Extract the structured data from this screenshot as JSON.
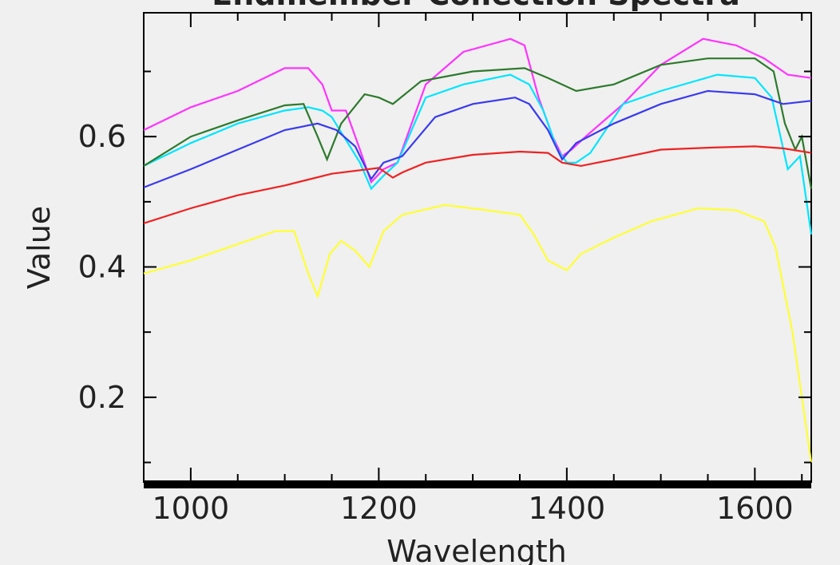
{
  "window": {
    "title": "Endmember Collection Spectra"
  },
  "chart_data": {
    "type": "line",
    "title": "Endmember Collection Spectra",
    "xlabel": "Wavelength",
    "ylabel": "Value",
    "xlim": [
      950,
      1660
    ],
    "ylim": [
      0.07,
      0.79
    ],
    "x_ticks": [
      1000,
      1200,
      1400,
      1600
    ],
    "y_ticks": [
      0.2,
      0.4,
      0.6
    ],
    "grid": false,
    "legend": "none",
    "series": [
      {
        "color": "#ff33ff",
        "points": [
          [
            950,
            0.61
          ],
          [
            1000,
            0.645
          ],
          [
            1050,
            0.67
          ],
          [
            1100,
            0.705
          ],
          [
            1125,
            0.705
          ],
          [
            1140,
            0.68
          ],
          [
            1150,
            0.64
          ],
          [
            1165,
            0.64
          ],
          [
            1180,
            0.58
          ],
          [
            1192,
            0.53
          ],
          [
            1205,
            0.55
          ],
          [
            1220,
            0.56
          ],
          [
            1250,
            0.68
          ],
          [
            1290,
            0.73
          ],
          [
            1340,
            0.75
          ],
          [
            1355,
            0.74
          ],
          [
            1370,
            0.66
          ],
          [
            1385,
            0.6
          ],
          [
            1395,
            0.57
          ],
          [
            1405,
            0.58
          ],
          [
            1420,
            0.6
          ],
          [
            1460,
            0.65
          ],
          [
            1500,
            0.71
          ],
          [
            1545,
            0.75
          ],
          [
            1580,
            0.74
          ],
          [
            1610,
            0.72
          ],
          [
            1635,
            0.695
          ],
          [
            1660,
            0.69
          ]
        ]
      },
      {
        "color": "#00e5ff",
        "points": [
          [
            950,
            0.555
          ],
          [
            1000,
            0.59
          ],
          [
            1050,
            0.62
          ],
          [
            1100,
            0.64
          ],
          [
            1125,
            0.645
          ],
          [
            1140,
            0.64
          ],
          [
            1150,
            0.63
          ],
          [
            1165,
            0.595
          ],
          [
            1180,
            0.56
          ],
          [
            1192,
            0.52
          ],
          [
            1205,
            0.54
          ],
          [
            1220,
            0.56
          ],
          [
            1250,
            0.66
          ],
          [
            1290,
            0.68
          ],
          [
            1340,
            0.695
          ],
          [
            1360,
            0.68
          ],
          [
            1375,
            0.64
          ],
          [
            1390,
            0.58
          ],
          [
            1400,
            0.56
          ],
          [
            1410,
            0.56
          ],
          [
            1425,
            0.575
          ],
          [
            1460,
            0.65
          ],
          [
            1500,
            0.67
          ],
          [
            1560,
            0.695
          ],
          [
            1600,
            0.69
          ],
          [
            1618,
            0.66
          ],
          [
            1635,
            0.55
          ],
          [
            1648,
            0.57
          ],
          [
            1660,
            0.45
          ]
        ]
      },
      {
        "color": "#2d7a2d",
        "points": [
          [
            950,
            0.555
          ],
          [
            1000,
            0.6
          ],
          [
            1050,
            0.625
          ],
          [
            1100,
            0.648
          ],
          [
            1120,
            0.65
          ],
          [
            1135,
            0.6
          ],
          [
            1145,
            0.565
          ],
          [
            1160,
            0.62
          ],
          [
            1185,
            0.665
          ],
          [
            1200,
            0.66
          ],
          [
            1215,
            0.65
          ],
          [
            1245,
            0.685
          ],
          [
            1300,
            0.7
          ],
          [
            1355,
            0.705
          ],
          [
            1380,
            0.69
          ],
          [
            1410,
            0.67
          ],
          [
            1450,
            0.68
          ],
          [
            1500,
            0.71
          ],
          [
            1550,
            0.72
          ],
          [
            1600,
            0.72
          ],
          [
            1620,
            0.7
          ],
          [
            1632,
            0.62
          ],
          [
            1643,
            0.58
          ],
          [
            1650,
            0.6
          ],
          [
            1660,
            0.52
          ]
        ]
      },
      {
        "color": "#3a3aee",
        "points": [
          [
            950,
            0.522
          ],
          [
            1000,
            0.55
          ],
          [
            1050,
            0.58
          ],
          [
            1100,
            0.61
          ],
          [
            1135,
            0.62
          ],
          [
            1155,
            0.61
          ],
          [
            1175,
            0.585
          ],
          [
            1192,
            0.535
          ],
          [
            1205,
            0.56
          ],
          [
            1225,
            0.57
          ],
          [
            1260,
            0.63
          ],
          [
            1300,
            0.65
          ],
          [
            1345,
            0.66
          ],
          [
            1360,
            0.65
          ],
          [
            1380,
            0.61
          ],
          [
            1395,
            0.565
          ],
          [
            1410,
            0.59
          ],
          [
            1450,
            0.62
          ],
          [
            1500,
            0.65
          ],
          [
            1550,
            0.67
          ],
          [
            1600,
            0.665
          ],
          [
            1630,
            0.65
          ],
          [
            1660,
            0.655
          ]
        ]
      },
      {
        "color": "#ee2222",
        "points": [
          [
            950,
            0.467
          ],
          [
            1000,
            0.49
          ],
          [
            1050,
            0.51
          ],
          [
            1100,
            0.525
          ],
          [
            1150,
            0.543
          ],
          [
            1200,
            0.552
          ],
          [
            1215,
            0.537
          ],
          [
            1225,
            0.545
          ],
          [
            1250,
            0.56
          ],
          [
            1300,
            0.572
          ],
          [
            1350,
            0.577
          ],
          [
            1380,
            0.575
          ],
          [
            1395,
            0.56
          ],
          [
            1415,
            0.555
          ],
          [
            1450,
            0.565
          ],
          [
            1500,
            0.58
          ],
          [
            1550,
            0.583
          ],
          [
            1600,
            0.585
          ],
          [
            1630,
            0.582
          ],
          [
            1660,
            0.575
          ]
        ]
      },
      {
        "color": "#ffff33",
        "points": [
          [
            950,
            0.39
          ],
          [
            1000,
            0.41
          ],
          [
            1050,
            0.435
          ],
          [
            1090,
            0.455
          ],
          [
            1110,
            0.455
          ],
          [
            1125,
            0.39
          ],
          [
            1135,
            0.355
          ],
          [
            1148,
            0.42
          ],
          [
            1160,
            0.44
          ],
          [
            1175,
            0.425
          ],
          [
            1190,
            0.4
          ],
          [
            1205,
            0.455
          ],
          [
            1225,
            0.48
          ],
          [
            1270,
            0.495
          ],
          [
            1310,
            0.488
          ],
          [
            1350,
            0.48
          ],
          [
            1365,
            0.45
          ],
          [
            1380,
            0.41
          ],
          [
            1400,
            0.395
          ],
          [
            1415,
            0.42
          ],
          [
            1450,
            0.445
          ],
          [
            1490,
            0.47
          ],
          [
            1540,
            0.49
          ],
          [
            1580,
            0.487
          ],
          [
            1610,
            0.47
          ],
          [
            1622,
            0.43
          ],
          [
            1640,
            0.3
          ],
          [
            1660,
            0.1
          ]
        ]
      }
    ]
  }
}
